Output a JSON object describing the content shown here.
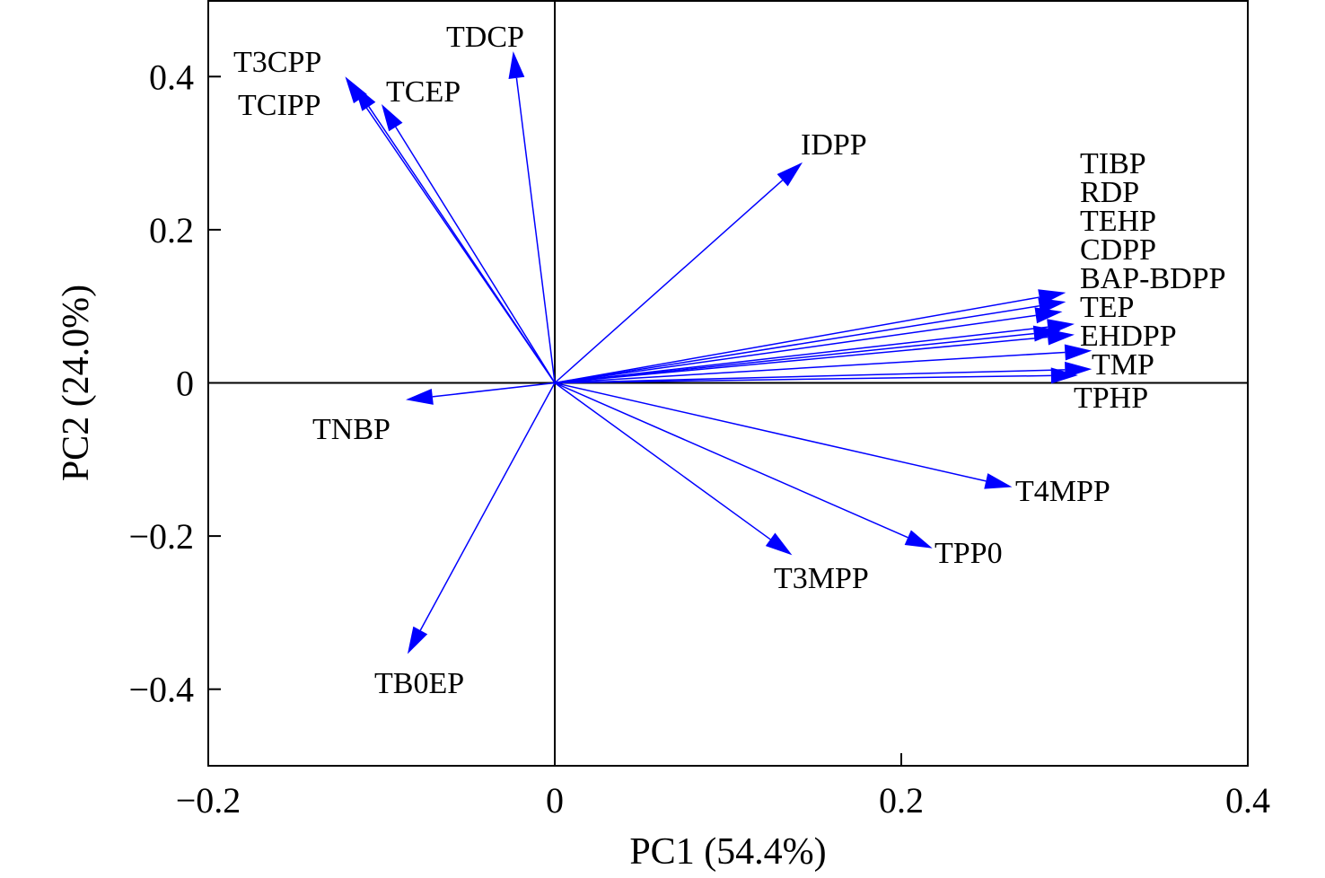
{
  "chart_data": {
    "type": "scatter",
    "subtype": "pca-loading-biplot",
    "xlabel": "PC1 (54.4%)",
    "ylabel": "PC2 (24.0%)",
    "xlim": [
      -0.2,
      0.4
    ],
    "ylim": [
      -0.5,
      0.5
    ],
    "xticks": [
      -0.2,
      0,
      0.2,
      0.4
    ],
    "xtick_labels": [
      "−0.2",
      "0",
      "0.2",
      "0.4"
    ],
    "yticks": [
      -0.4,
      -0.2,
      0,
      0.2,
      0.4
    ],
    "ytick_labels": [
      "−0.4",
      "−0.2",
      "0",
      "0.2",
      "0.4"
    ],
    "grid": false,
    "reference_lines": [
      "x = 0",
      "y = 0"
    ],
    "arrow_color": "#0000ff",
    "vectors": [
      {
        "name": "TDCP",
        "x": -0.024,
        "y": 0.433
      },
      {
        "name": "T3CPP",
        "x": -0.121,
        "y": 0.4
      },
      {
        "name": "TCIPP",
        "x": -0.116,
        "y": 0.39
      },
      {
        "name": "TCEP",
        "x": -0.1,
        "y": 0.364
      },
      {
        "name": "IDPP",
        "x": 0.143,
        "y": 0.288
      },
      {
        "name": "TIBP",
        "x": 0.295,
        "y": 0.118
      },
      {
        "name": "RDP",
        "x": 0.295,
        "y": 0.106
      },
      {
        "name": "TEHP",
        "x": 0.293,
        "y": 0.093
      },
      {
        "name": "CDPP",
        "x": 0.3,
        "y": 0.077
      },
      {
        "name": "BAP-BDPP",
        "x": 0.292,
        "y": 0.068
      },
      {
        "name": "TEP",
        "x": 0.3,
        "y": 0.063
      },
      {
        "name": "EHDPP",
        "x": 0.31,
        "y": 0.042
      },
      {
        "name": "TMP",
        "x": 0.31,
        "y": 0.018
      },
      {
        "name": "TPHP",
        "x": 0.302,
        "y": 0.01
      },
      {
        "name": "TNBP",
        "x": -0.086,
        "y": -0.022
      },
      {
        "name": "T4MPP",
        "x": 0.264,
        "y": -0.136
      },
      {
        "name": "TPP0",
        "x": 0.218,
        "y": -0.216
      },
      {
        "name": "T3MPP",
        "x": 0.137,
        "y": -0.225
      },
      {
        "name": "TB0EP",
        "x": -0.085,
        "y": -0.354
      }
    ]
  }
}
